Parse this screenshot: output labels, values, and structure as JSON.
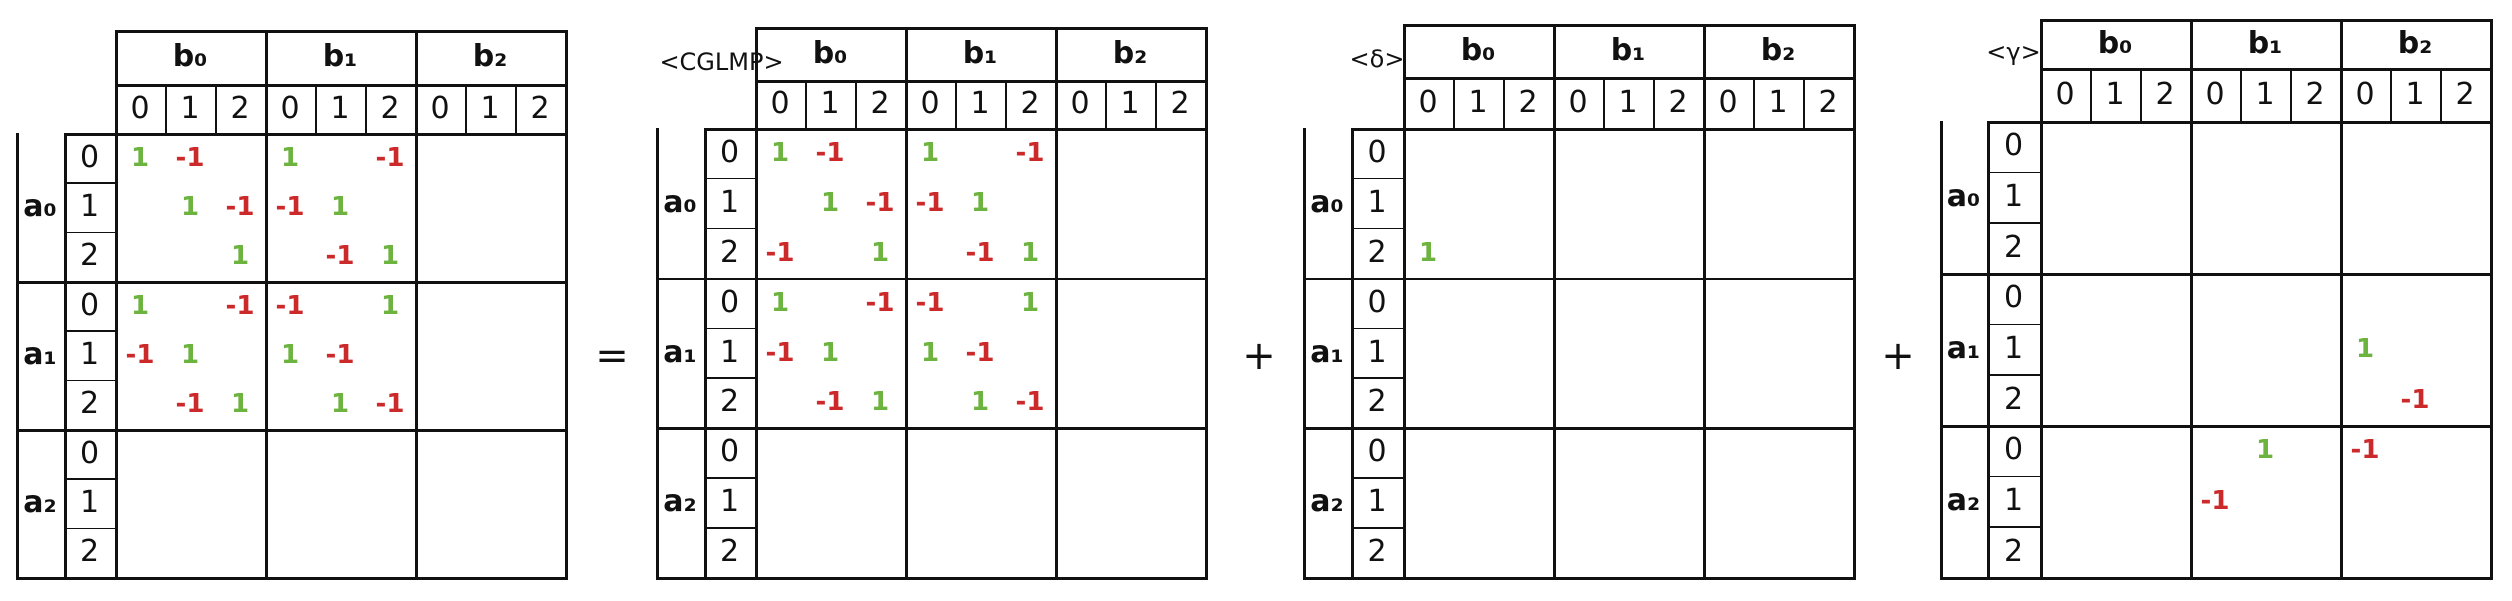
{
  "operators": [
    "=",
    "+",
    "+"
  ],
  "panels": [
    {
      "label": "",
      "col_groups": [
        "b₀",
        "b₁",
        "b₂"
      ],
      "col_subs": [
        "0",
        "1",
        "2"
      ],
      "row_groups": [
        "a₀",
        "a₁",
        "a₂"
      ],
      "row_subs": [
        "0",
        "1",
        "2"
      ],
      "entries": [
        {
          "r": 0,
          "c": 0,
          "v": "1",
          "color": "green"
        },
        {
          "r": 0,
          "c": 1,
          "v": "-1",
          "color": "red"
        },
        {
          "r": 0,
          "c": 3,
          "v": "1",
          "color": "green"
        },
        {
          "r": 0,
          "c": 5,
          "v": "-1",
          "color": "red"
        },
        {
          "r": 1,
          "c": 1,
          "v": "1",
          "color": "green"
        },
        {
          "r": 1,
          "c": 2,
          "v": "-1",
          "color": "red"
        },
        {
          "r": 1,
          "c": 3,
          "v": "-1",
          "color": "red"
        },
        {
          "r": 1,
          "c": 4,
          "v": "1",
          "color": "green"
        },
        {
          "r": 2,
          "c": 2,
          "v": "1",
          "color": "green"
        },
        {
          "r": 2,
          "c": 4,
          "v": "-1",
          "color": "red"
        },
        {
          "r": 2,
          "c": 5,
          "v": "1",
          "color": "green"
        },
        {
          "r": 3,
          "c": 0,
          "v": "1",
          "color": "green"
        },
        {
          "r": 3,
          "c": 2,
          "v": "-1",
          "color": "red"
        },
        {
          "r": 3,
          "c": 3,
          "v": "-1",
          "color": "red"
        },
        {
          "r": 3,
          "c": 5,
          "v": "1",
          "color": "green"
        },
        {
          "r": 4,
          "c": 0,
          "v": "-1",
          "color": "red"
        },
        {
          "r": 4,
          "c": 1,
          "v": "1",
          "color": "green"
        },
        {
          "r": 4,
          "c": 3,
          "v": "1",
          "color": "green"
        },
        {
          "r": 4,
          "c": 4,
          "v": "-1",
          "color": "red"
        },
        {
          "r": 5,
          "c": 1,
          "v": "-1",
          "color": "red"
        },
        {
          "r": 5,
          "c": 2,
          "v": "1",
          "color": "green"
        },
        {
          "r": 5,
          "c": 4,
          "v": "1",
          "color": "green"
        },
        {
          "r": 5,
          "c": 5,
          "v": "-1",
          "color": "red"
        }
      ]
    },
    {
      "label": "<CGLMP>",
      "col_groups": [
        "b₀",
        "b₁",
        "b₂"
      ],
      "col_subs": [
        "0",
        "1",
        "2"
      ],
      "row_groups": [
        "a₀",
        "a₁",
        "a₂"
      ],
      "row_subs": [
        "0",
        "1",
        "2"
      ],
      "entries": [
        {
          "r": 0,
          "c": 0,
          "v": "1",
          "color": "green"
        },
        {
          "r": 0,
          "c": 1,
          "v": "-1",
          "color": "red"
        },
        {
          "r": 0,
          "c": 3,
          "v": "1",
          "color": "green"
        },
        {
          "r": 0,
          "c": 5,
          "v": "-1",
          "color": "red"
        },
        {
          "r": 1,
          "c": 1,
          "v": "1",
          "color": "green"
        },
        {
          "r": 1,
          "c": 2,
          "v": "-1",
          "color": "red"
        },
        {
          "r": 1,
          "c": 3,
          "v": "-1",
          "color": "red"
        },
        {
          "r": 1,
          "c": 4,
          "v": "1",
          "color": "green"
        },
        {
          "r": 2,
          "c": 0,
          "v": "-1",
          "color": "red"
        },
        {
          "r": 2,
          "c": 2,
          "v": "1",
          "color": "green"
        },
        {
          "r": 2,
          "c": 4,
          "v": "-1",
          "color": "red"
        },
        {
          "r": 2,
          "c": 5,
          "v": "1",
          "color": "green"
        },
        {
          "r": 3,
          "c": 0,
          "v": "1",
          "color": "green"
        },
        {
          "r": 3,
          "c": 2,
          "v": "-1",
          "color": "red"
        },
        {
          "r": 3,
          "c": 3,
          "v": "-1",
          "color": "red"
        },
        {
          "r": 3,
          "c": 5,
          "v": "1",
          "color": "green"
        },
        {
          "r": 4,
          "c": 0,
          "v": "-1",
          "color": "red"
        },
        {
          "r": 4,
          "c": 1,
          "v": "1",
          "color": "green"
        },
        {
          "r": 4,
          "c": 3,
          "v": "1",
          "color": "green"
        },
        {
          "r": 4,
          "c": 4,
          "v": "-1",
          "color": "red"
        },
        {
          "r": 5,
          "c": 1,
          "v": "-1",
          "color": "red"
        },
        {
          "r": 5,
          "c": 2,
          "v": "1",
          "color": "green"
        },
        {
          "r": 5,
          "c": 4,
          "v": "1",
          "color": "green"
        },
        {
          "r": 5,
          "c": 5,
          "v": "-1",
          "color": "red"
        }
      ]
    },
    {
      "label": "<δ>",
      "col_groups": [
        "b₀",
        "b₁",
        "b₂"
      ],
      "col_subs": [
        "0",
        "1",
        "2"
      ],
      "row_groups": [
        "a₀",
        "a₁",
        "a₂"
      ],
      "row_subs": [
        "0",
        "1",
        "2"
      ],
      "entries": [
        {
          "r": 2,
          "c": 0,
          "v": "1",
          "color": "green"
        }
      ]
    },
    {
      "label": "<γ>",
      "col_groups": [
        "b₀",
        "b₁",
        "b₂"
      ],
      "col_subs": [
        "0",
        "1",
        "2"
      ],
      "row_groups": [
        "a₀",
        "a₁",
        "a₂"
      ],
      "row_subs": [
        "0",
        "1",
        "2"
      ],
      "entries": [
        {
          "r": 4,
          "c": 6,
          "v": "1",
          "color": "green"
        },
        {
          "r": 5,
          "c": 7,
          "v": "-1",
          "color": "red"
        },
        {
          "r": 6,
          "c": 4,
          "v": "1",
          "color": "green"
        },
        {
          "r": 6,
          "c": 6,
          "v": "-1",
          "color": "red"
        },
        {
          "r": 7,
          "c": 3,
          "v": "-1",
          "color": "red"
        }
      ]
    }
  ],
  "colors": {
    "line": "#111111",
    "positive": "#6db33f",
    "negative": "#cc2a2a"
  }
}
